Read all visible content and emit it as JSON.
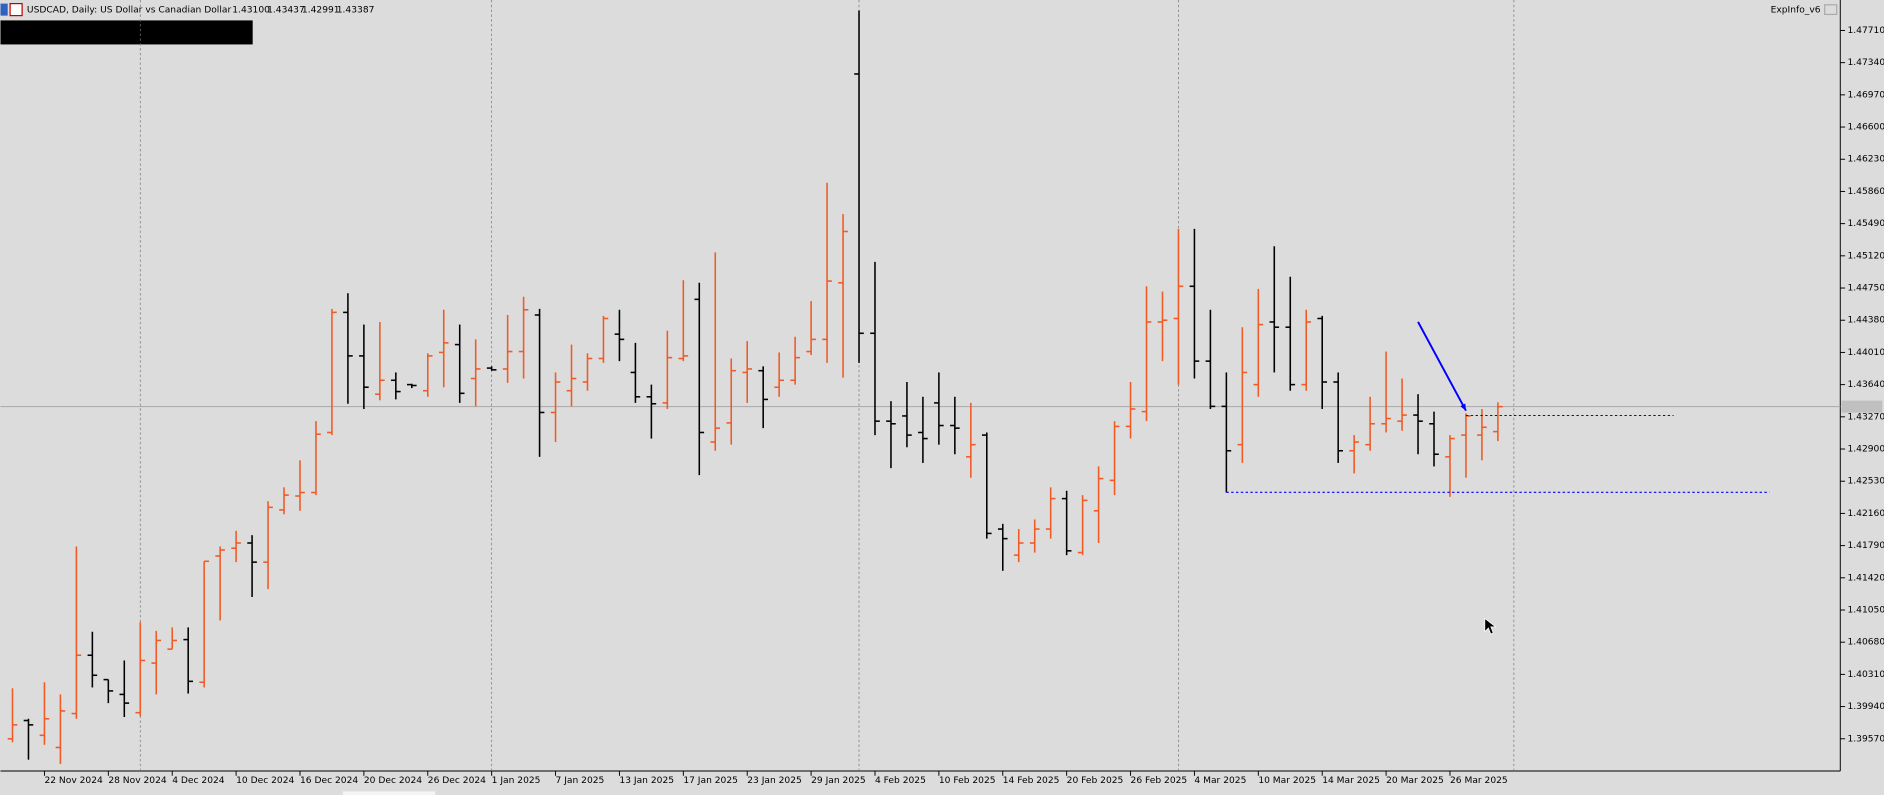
{
  "chart_data": {
    "type": "ohlc",
    "header": "USDCAD, Daily:  US Dollar vs Canadian Dollar",
    "header_values": [
      "1.43100",
      "1.43437",
      "1.42991",
      "1.43387"
    ],
    "indicator_label": "ExpInfo_v6",
    "categories": [
      null,
      null,
      "22 Nov 2024",
      null,
      null,
      null,
      "28 Nov 2024",
      null,
      null,
      null,
      "4 Dec 2024",
      null,
      null,
      null,
      "10 Dec 2024",
      null,
      null,
      null,
      "16 Dec 2024",
      null,
      null,
      null,
      "20 Dec 2024",
      null,
      null,
      null,
      "26 Dec 2024",
      null,
      null,
      null,
      "1 Jan 2025",
      null,
      null,
      null,
      "7 Jan 2025",
      null,
      null,
      null,
      "13 Jan 2025",
      null,
      null,
      null,
      "17 Jan 2025",
      null,
      null,
      null,
      "23 Jan 2025",
      null,
      null,
      null,
      "29 Jan 2025",
      null,
      null,
      null,
      "4 Feb 2025",
      null,
      null,
      null,
      "10 Feb 2025",
      null,
      null,
      null,
      "14 Feb 2025",
      null,
      null,
      null,
      "20 Feb 2025",
      null,
      null,
      null,
      "26 Feb 2025",
      null,
      null,
      null,
      "4 Mar 2025",
      null,
      null,
      null,
      "10 Mar 2025",
      null,
      null,
      null,
      "14 Mar 2025",
      null,
      null,
      null,
      "20 Mar 2025",
      null,
      null,
      null,
      "26 Mar 2025",
      null,
      null,
      null
    ],
    "open": [
      1.3957,
      1.3978,
      1.3961,
      1.3947,
      1.3986,
      1.4053,
      1.4025,
      1.4008,
      1.3987,
      1.4044,
      1.406,
      1.4071,
      1.4022,
      1.4167,
      1.4176,
      1.4182,
      1.416,
      1.422,
      1.4236,
      1.424,
      1.4309,
      1.4447,
      1.4397,
      1.4353,
      1.4369,
      1.4364,
      1.4357,
      1.4401,
      1.441,
      1.4371,
      1.4383,
      1.4382,
      1.4402,
      1.4444,
      1.4332,
      1.4357,
      1.4367,
      1.4394,
      1.4422,
      1.4378,
      1.435,
      1.4343,
      1.4394,
      1.4462,
      1.4298,
      1.432,
      1.4378,
      1.438,
      1.4361,
      1.4369,
      1.4402,
      1.4416,
      1.4481,
      1.4721,
      1.4423,
      1.4322,
      1.4328,
      1.4309,
      1.4343,
      1.4317,
      1.4281,
      1.4306,
      1.4198,
      1.4168,
      1.4182,
      1.4198,
      1.4233,
      1.4171,
      1.4219,
      1.4254,
      1.4316,
      1.4333,
      1.4436,
      1.444,
      1.4477,
      1.4391,
      1.4339,
      1.4295,
      1.4364,
      1.4436,
      1.443,
      1.4364,
      1.444,
      1.4367,
      1.4288,
      1.4295,
      1.4319,
      1.4322,
      1.4329,
      1.4319,
      1.4281,
      1.4306,
      1.4306,
      1.431
    ],
    "high": [
      1.4015,
      1.398,
      1.4022,
      1.4008,
      1.4178,
      1.408,
      1.4025,
      1.4047,
      1.4091,
      1.4081,
      1.4085,
      1.4085,
      1.4161,
      1.4178,
      1.4196,
      1.4191,
      1.423,
      1.4246,
      1.4277,
      1.4322,
      1.4451,
      1.4469,
      1.4433,
      1.4436,
      1.4378,
      1.4365,
      1.44,
      1.445,
      1.4433,
      1.4416,
      1.4385,
      1.4444,
      1.4465,
      1.4451,
      1.4378,
      1.441,
      1.44,
      1.4443,
      1.445,
      1.4412,
      1.4364,
      1.4426,
      1.4484,
      1.4481,
      1.4516,
      1.4394,
      1.4414,
      1.4385,
      1.4401,
      1.4419,
      1.446,
      1.4596,
      1.456,
      1.4794,
      1.4505,
      1.4345,
      1.4367,
      1.435,
      1.4378,
      1.435,
      1.4343,
      1.4309,
      1.4204,
      1.4198,
      1.4209,
      1.4246,
      1.4242,
      1.4237,
      1.427,
      1.4322,
      1.4367,
      1.4477,
      1.4471,
      1.4543,
      1.4543,
      1.445,
      1.4378,
      1.443,
      1.4474,
      1.4523,
      1.4488,
      1.445,
      1.4443,
      1.4378,
      1.4306,
      1.435,
      1.4402,
      1.4371,
      1.4353,
      1.4333,
      1.4306,
      1.4331,
      1.4336,
      1.43437
    ],
    "low": [
      1.3953,
      1.3933,
      1.395,
      1.3928,
      1.398,
      1.4016,
      1.3998,
      1.3982,
      1.3983,
      1.4008,
      1.406,
      1.4009,
      1.4016,
      1.4093,
      1.416,
      1.412,
      1.4129,
      1.4215,
      1.4219,
      1.4237,
      1.4306,
      1.4342,
      1.4336,
      1.4346,
      1.4347,
      1.436,
      1.435,
      1.4361,
      1.4343,
      1.4339,
      1.438,
      1.4366,
      1.4371,
      1.4281,
      1.4298,
      1.4339,
      1.4357,
      1.4389,
      1.4391,
      1.4343,
      1.4302,
      1.4336,
      1.4391,
      1.426,
      1.4288,
      1.4295,
      1.4343,
      1.4314,
      1.435,
      1.4364,
      1.4398,
      1.4389,
      1.4372,
      1.4389,
      1.4306,
      1.4268,
      1.4292,
      1.4274,
      1.4295,
      1.4284,
      1.4257,
      1.4187,
      1.415,
      1.416,
      1.4171,
      1.4187,
      1.4168,
      1.4168,
      1.4182,
      1.4237,
      1.4302,
      1.4322,
      1.4391,
      1.4364,
      1.4371,
      1.4336,
      1.424,
      1.4274,
      1.435,
      1.4378,
      1.4357,
      1.4357,
      1.4336,
      1.4274,
      1.4262,
      1.4288,
      1.4309,
      1.4311,
      1.4284,
      1.427,
      1.4235,
      1.4257,
      1.4277,
      1.42991
    ],
    "close": [
      1.3973,
      1.3973,
      1.398,
      1.3989,
      1.4053,
      1.403,
      1.4012,
      1.3998,
      1.4047,
      1.407,
      1.407,
      1.4023,
      1.4161,
      1.4174,
      1.4182,
      1.416,
      1.4223,
      1.4237,
      1.424,
      1.4307,
      1.4447,
      1.4397,
      1.4361,
      1.4369,
      1.4356,
      1.4363,
      1.4397,
      1.4412,
      1.4354,
      1.4382,
      1.4381,
      1.4402,
      1.445,
      1.4332,
      1.4367,
      1.4371,
      1.4394,
      1.444,
      1.4416,
      1.435,
      1.4342,
      1.4395,
      1.4397,
      1.4309,
      1.4314,
      1.438,
      1.4382,
      1.4347,
      1.4369,
      1.4395,
      1.4416,
      1.4483,
      1.454,
      1.4423,
      1.4322,
      1.4319,
      1.4306,
      1.4302,
      1.4317,
      1.4314,
      1.4295,
      1.4193,
      1.4187,
      1.4182,
      1.4198,
      1.4233,
      1.4173,
      1.4231,
      1.4256,
      1.4316,
      1.4336,
      1.4436,
      1.4438,
      1.4477,
      1.4391,
      1.4339,
      1.4288,
      1.4378,
      1.4433,
      1.443,
      1.4364,
      1.4436,
      1.4367,
      1.4288,
      1.4298,
      1.4319,
      1.4325,
      1.4329,
      1.4322,
      1.4284,
      1.4302,
      1.4328,
      1.4315,
      1.43387
    ],
    "up_color": "#f05a24",
    "down_color": "#000000",
    "ylim": [
      1.392,
      1.4806
    ],
    "yticks": [
      {
        "value": 1.4771,
        "label": "1.47710"
      },
      {
        "value": 1.4734,
        "label": "1.47340"
      },
      {
        "value": 1.4697,
        "label": "1.46970"
      },
      {
        "value": 1.466,
        "label": "1.46600"
      },
      {
        "value": 1.4623,
        "label": "1.46230"
      },
      {
        "value": 1.4586,
        "label": "1.45860"
      },
      {
        "value": 1.4549,
        "label": "1.45490"
      },
      {
        "value": 1.4512,
        "label": "1.45120"
      },
      {
        "value": 1.4475,
        "label": "1.44750"
      },
      {
        "value": 1.4438,
        "label": "1.44380"
      },
      {
        "value": 1.4401,
        "label": "1.44010"
      },
      {
        "value": 1.4364,
        "label": "1.43640"
      },
      {
        "value": 1.4327,
        "label": "1.43270"
      },
      {
        "value": 1.429,
        "label": "1.42900"
      },
      {
        "value": 1.4253,
        "label": "1.42530"
      },
      {
        "value": 1.4216,
        "label": "1.42160"
      },
      {
        "value": 1.4179,
        "label": "1.41790"
      },
      {
        "value": 1.4142,
        "label": "1.41420"
      },
      {
        "value": 1.4105,
        "label": "1.41050"
      },
      {
        "value": 1.4068,
        "label": "1.40680"
      },
      {
        "value": 1.4031,
        "label": "1.40310"
      },
      {
        "value": 1.3994,
        "label": "1.39940"
      },
      {
        "value": 1.3957,
        "label": "1.39570"
      }
    ],
    "hlines": [
      {
        "value": 1.43285,
        "from": 91,
        "to": 104,
        "color": "#0000ff"
      },
      {
        "value": 1.42402,
        "from": 76,
        "to": 110,
        "color": "#0000ff"
      }
    ],
    "arrow": {
      "from": [
        88,
        1.44361
      ],
      "to": [
        91,
        1.4334
      ],
      "color": "#0000ff"
    }
  }
}
